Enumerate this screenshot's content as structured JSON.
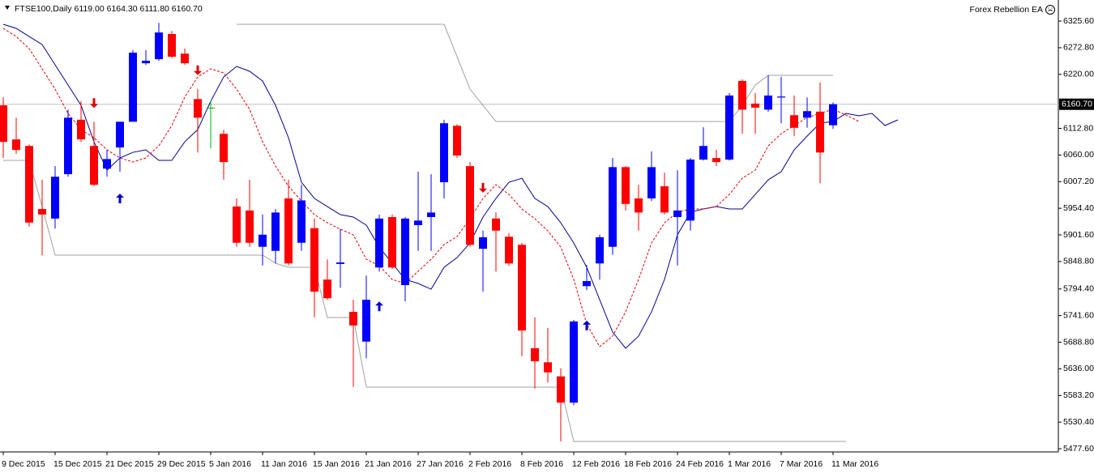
{
  "chart_data": {
    "type": "candlestick",
    "title": "FTSE100,Daily  6119.00 6164.30 6111.80 6160.70",
    "annotations": [
      "Forex Rebellion EA"
    ],
    "categories": [
      "9 Dec 2015",
      null,
      null,
      null,
      "15 Dec 2015",
      null,
      null,
      null,
      "21 Dec 2015",
      null,
      null,
      null,
      "29 Dec 2015",
      null,
      null,
      null,
      "5 Jan 2016",
      null,
      null,
      null,
      "11 Jan 2016",
      null,
      null,
      null,
      "15 Jan 2016",
      null,
      null,
      null,
      "21 Jan 2016",
      null,
      null,
      null,
      "27 Jan 2016",
      null,
      null,
      null,
      "2 Feb 2016",
      null,
      null,
      null,
      "8 Feb 2016",
      null,
      null,
      null,
      "12 Feb 2016",
      null,
      null,
      null,
      "18 Feb 2016",
      null,
      null,
      null,
      "24 Feb 2016",
      null,
      null,
      null,
      "1 Mar 2016",
      null,
      null,
      null,
      "7 Mar 2016",
      null,
      null,
      null,
      "11 Mar 2016",
      null,
      null,
      null,
      null,
      null
    ],
    "open": [
      6158.6,
      6091,
      6078,
      5953,
      5934,
      6022,
      6130,
      6078,
      6033,
      6075,
      6126,
      6242,
      6250,
      6300,
      6261,
      6171,
      6154,
      6102,
      5958,
      5950,
      5878,
      5870,
      5974,
      5886,
      5915,
      5813,
      5844,
      5749,
      5690,
      5837,
      5937,
      5802,
      5921,
      5937,
      6006,
      6118,
      6038,
      5874,
      5934,
      5898,
      5882,
      5677,
      5649,
      5621,
      5569,
      5800,
      5845,
      5878,
      6036,
      5974,
      5974,
      5998,
      5937,
      5930,
      6051,
      6054,
      6051,
      6207,
      6162,
      6150,
      6174,
      6139,
      6134,
      6146,
      6119,
      null,
      null,
      null,
      null,
      null
    ],
    "high": [
      6174.6,
      6134,
      6081,
      6011,
      6038,
      6150,
      6167,
      6126,
      6070,
      6126,
      6268,
      6268,
      6322,
      6306,
      6271,
      6191,
      6167,
      6110,
      5974,
      6011,
      5942,
      5953,
      6011,
      6001,
      5934,
      5853,
      5913,
      5773,
      5821,
      5942,
      5942,
      5937,
      6027,
      6022,
      6130,
      6121,
      6046,
      5910,
      5946,
      5905,
      5886,
      5738,
      5717,
      5637,
      5733,
      5842,
      5902,
      6054,
      6038,
      6001,
      6067,
      6025,
      6030,
      6054,
      6115,
      6070,
      6183,
      6210,
      6183,
      6218,
      6215,
      6178,
      6174,
      6204,
      6164.3,
      null,
      null,
      null,
      null,
      null
    ],
    "low": [
      6054,
      6062,
      5918,
      5861,
      5914,
      6017,
      6086,
      5998,
      6017,
      6027,
      6126,
      6239,
      6247,
      6252,
      6239,
      6065,
      6073,
      6011,
      5878,
      5878,
      5841,
      5845,
      5841,
      5870,
      5738,
      5773,
      5797,
      5600,
      5657,
      5829,
      5834,
      5770,
      5870,
      5870,
      5974,
      6054,
      5878,
      5789,
      5829,
      5840,
      5661,
      5597,
      5609,
      5492,
      5564,
      5792,
      5813,
      5862,
      5950,
      5910,
      5969,
      5942,
      5841,
      5910,
      6049,
      6038,
      6049,
      6102,
      6102,
      6146,
      6123,
      6098,
      6114,
      6004,
      6111.8,
      null,
      null,
      null,
      null,
      null
    ],
    "close": [
      6086,
      6070,
      5926,
      5942,
      6017,
      6134,
      6091,
      6001,
      6052,
      6126,
      6263,
      6247,
      6303,
      6255,
      6242,
      6134,
      6154,
      6046,
      5886,
      5886,
      5902,
      5946,
      5845,
      5970,
      5789,
      5776,
      5847,
      5722,
      5773,
      5934,
      5837,
      5934,
      5930,
      5946,
      6123,
      6059,
      5882,
      5897,
      5910,
      5845,
      5712,
      5651,
      5629,
      5569,
      5730,
      5810,
      5897,
      6036,
      5963,
      5946,
      6036,
      5946,
      5950,
      6051,
      6078,
      6046,
      6178,
      6150,
      6154,
      6178,
      6176,
      6114,
      6147,
      6065,
      6160.7,
      null,
      null,
      null,
      null,
      null
    ],
    "up_color": "#0000ff",
    "down_color": "#ff0000",
    "doji_color": "#00b000",
    "lines": [
      {
        "color": "#00008b",
        "dashed": false,
        "values": [
          6319.2,
          6311.2,
          6295.1,
          6279.1,
          6238.9,
          6198.8,
          6158.6,
          6086.3,
          6030.1,
          6054.2,
          6065.4,
          6070.3,
          6049.4,
          6049.4,
          6086.3,
          6110.4,
          6166.6,
          6214.8,
          6235.7,
          6226.1,
          6206.8,
          6158.6,
          6094.4,
          6006.0,
          5973.9,
          5957.8,
          5941.8,
          5937.0,
          5920.9,
          5877.5,
          5845.4,
          5813.3,
          5805.3,
          5794.0,
          5837.4,
          5856.6,
          5885.6,
          5937.0,
          5973.9,
          6006.0,
          6014.0,
          5973.9,
          5957.8,
          5925.7,
          5885.6,
          5837.4,
          5773.1,
          5708.9,
          5676.8,
          5700.9,
          5749.1,
          5813.3,
          5901.7,
          5946.6,
          5953.0,
          5957.8,
          5953.0,
          5953.0,
          5981.9,
          6010.8,
          6026.9,
          6070.3,
          6097.6,
          6123.3,
          6126.5,
          6142.5,
          6137.7,
          6142.5,
          6118.5,
          6129.7
        ]
      },
      {
        "color": "#e00000",
        "dashed": true,
        "values": [
          6311.2,
          6295.1,
          6271.0,
          6230.9,
          6190.7,
          6142.5,
          6110.4,
          6094.4,
          6070.3,
          6054.2,
          6046.2,
          6054.2,
          6078.3,
          6118.5,
          6174.7,
          6214.8,
          6230.9,
          6222.9,
          6190.7,
          6150.6,
          6086.3,
          6038.1,
          5998.0,
          5969.1,
          5941.8,
          5925.7,
          5912.9,
          5901.6,
          5853.4,
          5840.6,
          5813.3,
          5805.3,
          5829.4,
          5853.4,
          5882.4,
          5898.4,
          5933.8,
          5973.9,
          6001.2,
          5981.9,
          5953.0,
          5933.8,
          5909.7,
          5877.5,
          5813.3,
          5725.0,
          5680.0,
          5700.9,
          5749.1,
          5813.3,
          5885.6,
          5925.7,
          5946.6,
          5953.0,
          5953.0,
          5957.8,
          5981.9,
          6014.0,
          6030.1,
          6078.3,
          6102.4,
          6118.5,
          6134.6,
          6142.5,
          6150.6,
          6139.3,
          6126.5,
          null,
          null,
          null
        ]
      },
      {
        "color": "#a0a0a0",
        "dashed": false,
        "values": [
          6049.4,
          6049.4,
          6049.4,
          5957.8,
          5861.5,
          5861.5,
          5861.5,
          5861.5,
          5861.5,
          5861.5,
          5861.5,
          5861.5,
          5861.5,
          5861.5,
          5861.5,
          5861.5,
          5861.5,
          5861.5,
          5861.5,
          5861.5,
          5861.5,
          5845.4,
          5837.4,
          5837.4,
          5837.4,
          5737.8,
          5737.8,
          5737.8,
          5599.7,
          5599.7,
          5599.7,
          5599.7,
          5599.7,
          5599.7,
          5599.7,
          5599.7,
          5599.7,
          5599.7,
          5599.7,
          5599.7,
          5599.7,
          5599.7,
          5599.7,
          5599.7,
          5492.1,
          5492.1,
          5492.1,
          5492.1,
          5492.1,
          5492.1,
          5492.1,
          5492.1,
          5492.1,
          5492.1,
          5492.1,
          5492.1,
          5492.1,
          5492.1,
          5492.1,
          5492.1,
          5492.1,
          5492.1,
          5492.1,
          5492.1,
          5492.1,
          5492.1,
          null,
          null,
          null,
          null
        ]
      },
      {
        "color": "#a0a0a0",
        "dashed": false,
        "values": [
          null,
          null,
          null,
          null,
          null,
          null,
          null,
          null,
          null,
          null,
          null,
          null,
          null,
          null,
          null,
          null,
          null,
          null,
          6319.2,
          6319.2,
          6319.2,
          6319.2,
          6319.2,
          6319.2,
          6319.2,
          6319.2,
          6319.2,
          6319.2,
          6319.2,
          6319.2,
          6319.2,
          6319.2,
          6319.2,
          6319.2,
          6319.2,
          6255.0,
          6190.7,
          6158.6,
          6126.5,
          6126.5,
          6126.5,
          6126.5,
          6126.5,
          6126.5,
          6126.5,
          6126.5,
          6126.5,
          6126.5,
          6126.5,
          6126.5,
          6126.5,
          6126.5,
          6126.5,
          6126.5,
          6126.5,
          6126.5,
          6126.5,
          6158.6,
          6198.8,
          6218.0,
          6218.0,
          6218.0,
          6218.0,
          6218.0,
          6218.0,
          null,
          null,
          null,
          null,
          null
        ]
      }
    ],
    "signals": {
      "up": [
        {
          "index": 9,
          "value": 5974
        },
        {
          "index": 29,
          "value": 5760
        },
        {
          "index": 45,
          "value": 5722
        }
      ],
      "down": [
        {
          "index": 7,
          "value": 6163
        },
        {
          "index": 15,
          "value": 6228
        },
        {
          "index": 37,
          "value": 5995
        }
      ]
    },
    "current_price": {
      "value": 6160.7,
      "label": "6160.70"
    },
    "ylim": [
      5471.2,
      6361.0
    ],
    "yticks": [
      {
        "value": 6325.6,
        "label": "6325.60"
      },
      {
        "value": 6272.8,
        "label": "6272.80"
      },
      {
        "value": 6220.0,
        "label": "6220.00"
      },
      {
        "value": 6112.8,
        "label": "6112.80"
      },
      {
        "value": 6060.0,
        "label": "6060.00"
      },
      {
        "value": 6007.2,
        "label": "6007.20"
      },
      {
        "value": 5954.4,
        "label": "5954.40"
      },
      {
        "value": 5901.6,
        "label": "5901.60"
      },
      {
        "value": 5848.8,
        "label": "5848.80"
      },
      {
        "value": 5794.4,
        "label": "5794.40"
      },
      {
        "value": 5741.6,
        "label": "5741.60"
      },
      {
        "value": 5688.8,
        "label": "5688.80"
      },
      {
        "value": 5636.0,
        "label": "5636.00"
      },
      {
        "value": 5583.2,
        "label": "5583.20"
      },
      {
        "value": 5530.4,
        "label": "5530.40"
      },
      {
        "value": 5477.6,
        "label": "5477.60"
      }
    ]
  }
}
